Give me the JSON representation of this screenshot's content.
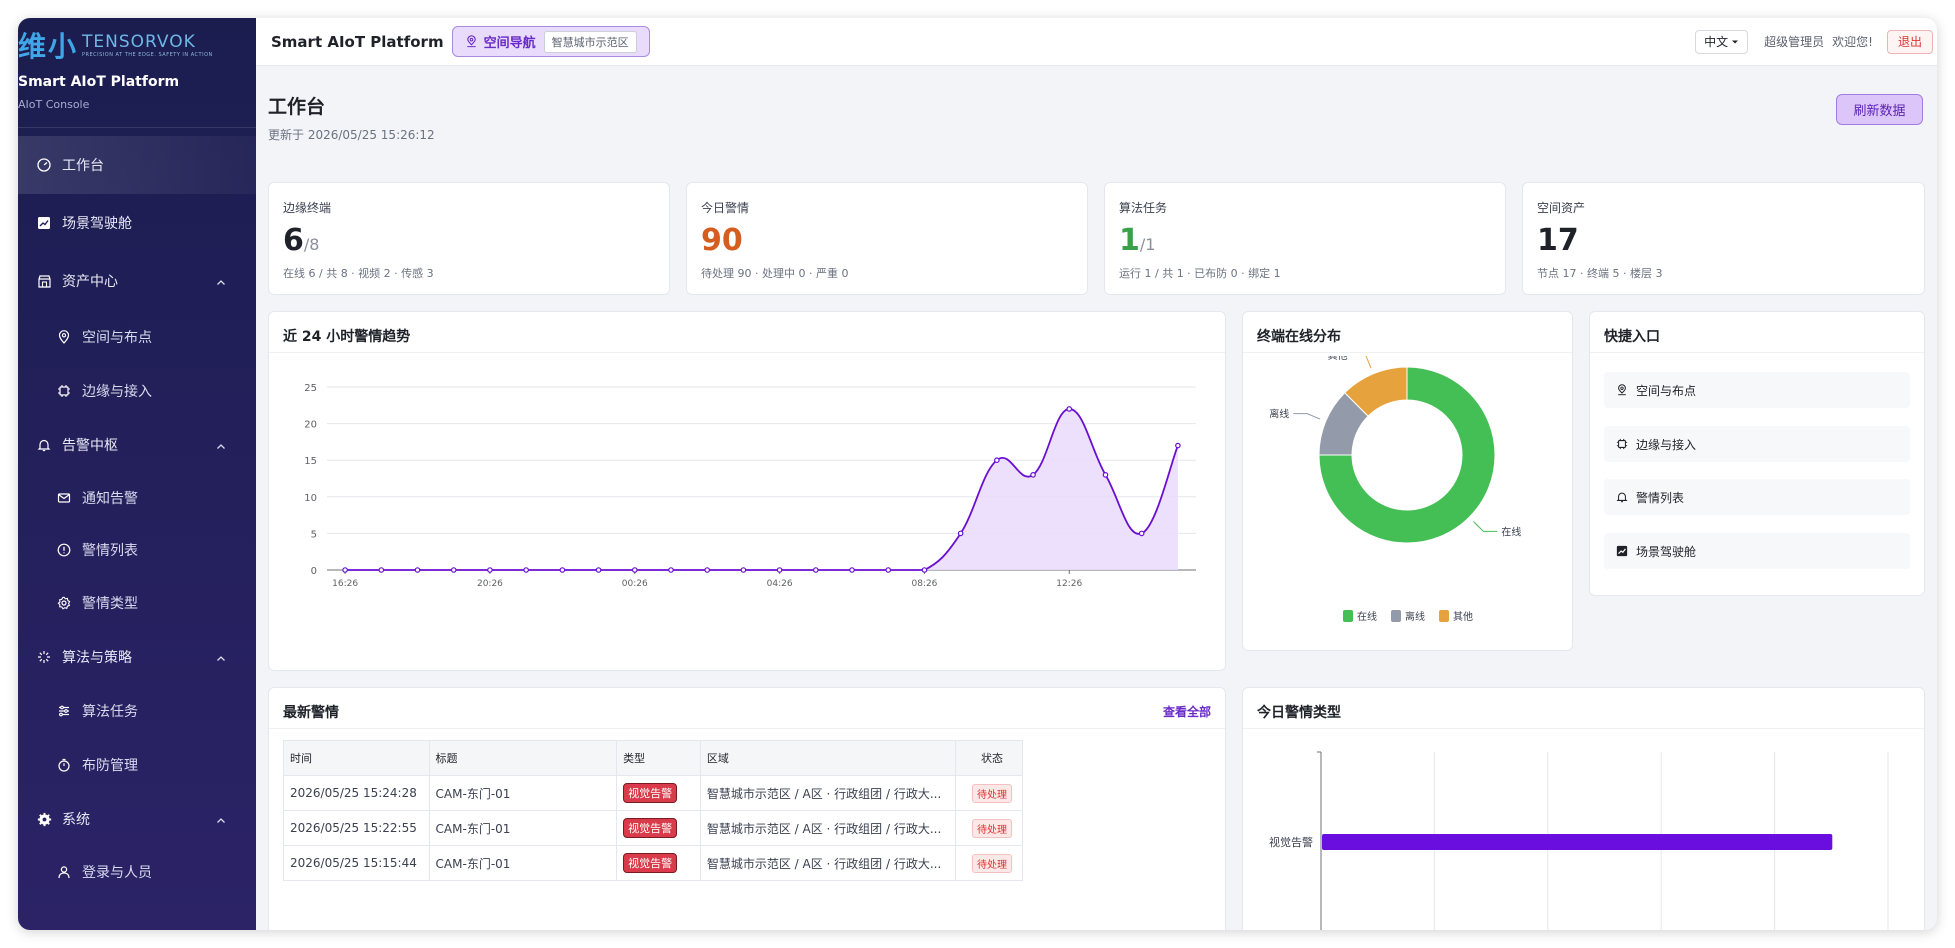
{
  "sidebar": {
    "logo_cn": "维小",
    "logo_en": "TENSORVOK",
    "logo_tagline": "PRECISION AT THE EDGE. SAFETY IN ACTION",
    "title": "Smart AIoT Platform",
    "subtitle": "AIoT Console",
    "menu": {
      "workbench": "工作台",
      "cockpit": "场景驾驶舱",
      "assets": "资产中心",
      "space": "空间与布点",
      "edge": "边缘与接入",
      "alarm_center": "告警中枢",
      "notify": "通知告警",
      "alert_list": "警情列表",
      "alert_types": "警情类型",
      "algo": "算法与策略",
      "algo_tasks": "算法任务",
      "defense": "布防管理",
      "system": "系统",
      "login_people": "登录与人员"
    }
  },
  "topbar": {
    "title": "Smart AIoT Platform",
    "space_nav": "空间导航",
    "space_tag": "智慧城市示范区",
    "lang": "中文",
    "user": "超级管理员",
    "welcome": "欢迎您!",
    "logout": "退出"
  },
  "page": {
    "title": "工作台",
    "updated": "更新于 2026/05/25 15:26:12",
    "refresh": "刷新数据"
  },
  "stats": [
    {
      "label": "边缘终端",
      "value": "6",
      "den": "/8",
      "desc": "在线 6 / 共 8 · 视频 2 · 传感 3",
      "color": "#1f2329"
    },
    {
      "label": "今日警情",
      "value": "90",
      "den": "",
      "desc": "待处理 90 · 处理中 0 · 严重 0",
      "color": "#d45d1f"
    },
    {
      "label": "算法任务",
      "value": "1",
      "den": "/1",
      "desc": "运行 1 / 共 1 · 已布防 0 · 绑定 1",
      "color": "#3aa14a"
    },
    {
      "label": "空间资产",
      "value": "17",
      "den": "",
      "desc": "节点 17 · 终端 5 · 楼层 3",
      "color": "#1f2329"
    }
  ],
  "trend": {
    "title": "近 24 小时警情趋势",
    "chart_data": {
      "type": "area",
      "x_ticks": [
        "16:26",
        "20:26",
        "00:26",
        "04:26",
        "08:26",
        "12:26"
      ],
      "values": [
        0,
        0,
        0,
        0,
        0,
        0,
        0,
        0,
        0,
        0,
        0,
        0,
        0,
        0,
        0,
        0,
        0,
        5,
        15,
        13,
        22,
        13,
        5,
        17
      ],
      "ylim": [
        0,
        25
      ],
      "y_ticks": [
        0,
        5,
        10,
        15,
        20,
        25
      ],
      "color": "#6a0fd1",
      "fill": "#eadbfb",
      "grid": true
    }
  },
  "online": {
    "title": "终端在线分布",
    "chart_data": {
      "type": "pie",
      "labels": [
        "在线",
        "离线",
        "其他"
      ],
      "values": [
        6,
        1,
        1
      ],
      "colors": [
        "#44bf55",
        "#939aaa",
        "#e6a23c"
      ]
    }
  },
  "quick": {
    "title": "快捷入口",
    "items": [
      "空间与布点",
      "边缘与接入",
      "警情列表",
      "场景驾驶舱"
    ]
  },
  "latest": {
    "title": "最新警情",
    "view_all": "查看全部",
    "headers": [
      "时间",
      "标题",
      "类型",
      "区域",
      "状态"
    ],
    "rows": [
      [
        "2026/05/25 15:24:28",
        "CAM-东门-01",
        "视觉告警",
        "智慧城市示范区 / A区 · 行政组团 / 行政大...",
        "待处理"
      ],
      [
        "2026/05/25 15:22:55",
        "CAM-东门-01",
        "视觉告警",
        "智慧城市示范区 / A区 · 行政组团 / 行政大...",
        "待处理"
      ],
      [
        "2026/05/25 15:15:44",
        "CAM-东门-01",
        "视觉告警",
        "智慧城市示范区 / A区 · 行政组团 / 行政大...",
        "待处理"
      ]
    ]
  },
  "types": {
    "title": "今日警情类型",
    "chart_data": {
      "type": "bar",
      "orientation": "horizontal",
      "categories": [
        "视觉告警"
      ],
      "values": [
        90
      ],
      "xlim": [
        0,
        100
      ],
      "color": "#6a0ee0"
    }
  }
}
